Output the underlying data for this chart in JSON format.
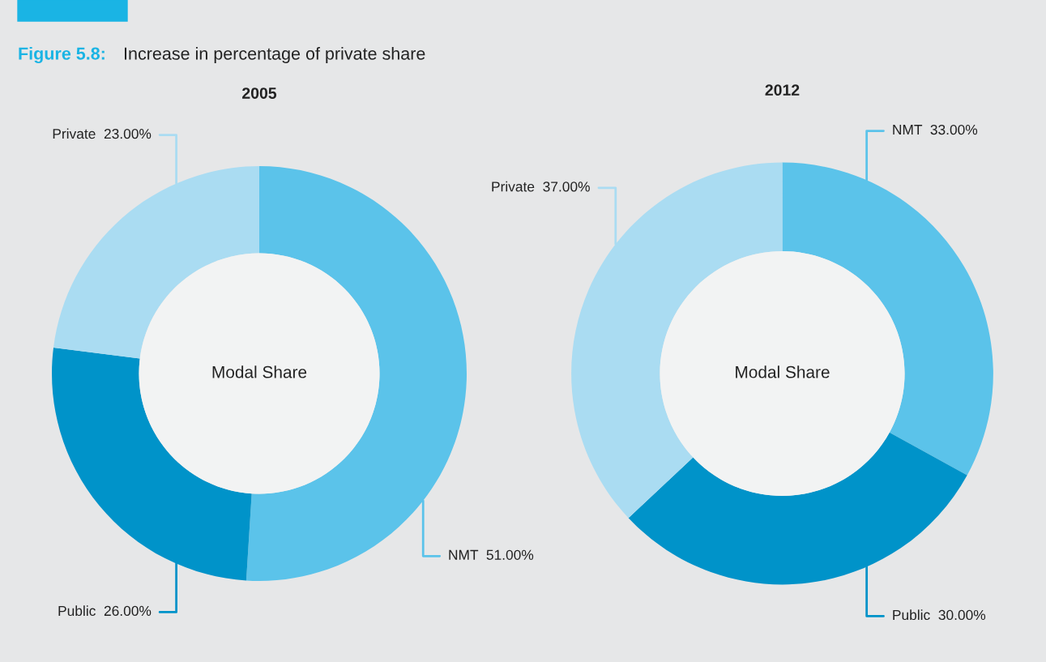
{
  "chart_data": [
    {
      "type": "donut",
      "title": "2005",
      "categories": [
        "NMT",
        "Public",
        "Private"
      ],
      "values": [
        51,
        26,
        23
      ],
      "value_labels": [
        "51.00%",
        "26.00%",
        "23.00%"
      ],
      "colors": [
        "#5bc3ea",
        "#0093c9",
        "#aadcf2"
      ],
      "annotations": [
        "Modal Share",
        "Figure 5.8:",
        "Increase in percentage of private share"
      ]
    },
    {
      "type": "donut",
      "title": "2012",
      "categories": [
        "NMT",
        "Public",
        "Private"
      ],
      "values": [
        33,
        30,
        37
      ],
      "value_labels": [
        "33.00%",
        "30.00%",
        "37.00%"
      ],
      "colors": [
        "#5bc3ea",
        "#0093c9",
        "#aadcf2"
      ],
      "annotations": [
        "Modal Share"
      ]
    }
  ]
}
